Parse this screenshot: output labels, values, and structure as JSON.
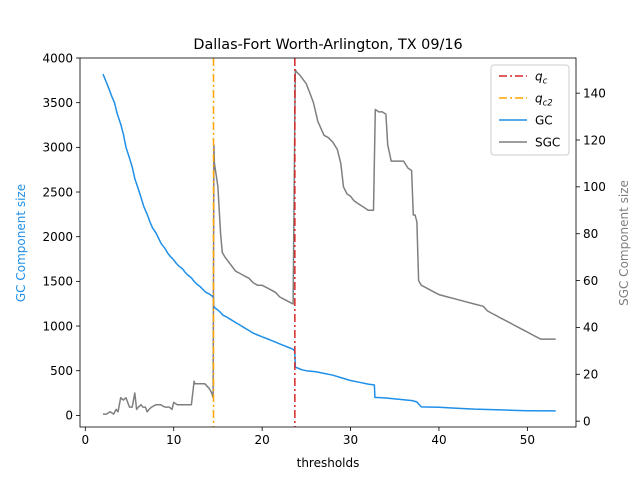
{
  "chart_data": {
    "type": "line",
    "title": "Dallas-Fort Worth-Arlington, TX 09/16",
    "xlabel": "thresholds",
    "ylabel_left": "GC Component size",
    "ylabel_right": "SGC Component size",
    "xlim": [
      -0.6,
      55.5
    ],
    "ylim_left": [
      -130,
      4000
    ],
    "ylim_right": [
      -2.5,
      155
    ],
    "x_ticks": [
      0,
      10,
      20,
      30,
      40,
      50
    ],
    "y_ticks_left": [
      0,
      500,
      1000,
      1500,
      2000,
      2500,
      3000,
      3500,
      4000
    ],
    "y_ticks_right": [
      0,
      20,
      40,
      60,
      80,
      100,
      120,
      140
    ],
    "grid": false,
    "legend_position": "top-right",
    "colors": {
      "qc": "#d62728",
      "qc2": "#ffa500",
      "gc": "#1f8fe8",
      "sgc": "#7f7f7f",
      "left_label": "#1f8fe8",
      "right_label": "#7f7f7f"
    },
    "vlines": [
      {
        "name": "qc",
        "x": 23.7
      },
      {
        "name": "qc2",
        "x": 14.5
      }
    ],
    "legend": [
      {
        "key": "qc",
        "base": "q",
        "sub": "c",
        "style": "dashdot"
      },
      {
        "key": "qc2",
        "base": "q",
        "sub": "c2",
        "style": "dashdot"
      },
      {
        "key": "gc",
        "label": "GC",
        "style": "solid"
      },
      {
        "key": "sgc",
        "label": "SGC",
        "style": "solid"
      }
    ],
    "series": [
      {
        "name": "GC",
        "axis": "left",
        "x": [
          2.0,
          2.5,
          3.0,
          3.3,
          3.6,
          4.0,
          4.3,
          4.6,
          5.0,
          5.3,
          5.6,
          6.0,
          6.3,
          6.6,
          7.0,
          7.3,
          7.6,
          8.0,
          8.3,
          8.6,
          9.0,
          9.3,
          9.6,
          10.0,
          10.3,
          10.6,
          11.0,
          11.3,
          11.6,
          12.0,
          12.3,
          12.6,
          13.0,
          13.3,
          13.6,
          14.0,
          14.3,
          14.5,
          14.55,
          14.7,
          15.0,
          15.3,
          15.6,
          16.0,
          16.5,
          17.0,
          17.5,
          18.0,
          18.5,
          19.0,
          19.5,
          20.0,
          20.5,
          21.0,
          21.5,
          22.0,
          22.5,
          23.0,
          23.5,
          23.7,
          23.75,
          24.0,
          24.5,
          25.0,
          25.5,
          26.0,
          27.0,
          28.0,
          29.0,
          30.0,
          31.0,
          32.0,
          32.7,
          32.75,
          33.0,
          34.0,
          35.0,
          36.0,
          37.0,
          37.5,
          38.0,
          40.0,
          42.0,
          44.0,
          46.0,
          48.0,
          50.0,
          53.2
        ],
        "values": [
          3820,
          3700,
          3570,
          3500,
          3380,
          3260,
          3150,
          3000,
          2880,
          2780,
          2650,
          2530,
          2440,
          2340,
          2250,
          2170,
          2100,
          2040,
          1980,
          1920,
          1870,
          1820,
          1780,
          1740,
          1700,
          1670,
          1640,
          1600,
          1570,
          1540,
          1500,
          1470,
          1440,
          1410,
          1380,
          1360,
          1340,
          1320,
          1220,
          1200,
          1180,
          1150,
          1120,
          1100,
          1070,
          1040,
          1010,
          980,
          950,
          920,
          900,
          880,
          860,
          840,
          820,
          800,
          780,
          760,
          740,
          720,
          540,
          530,
          510,
          500,
          495,
          490,
          470,
          450,
          420,
          390,
          370,
          350,
          340,
          200,
          200,
          195,
          185,
          175,
          165,
          150,
          95,
          90,
          80,
          70,
          65,
          58,
          52,
          50
        ]
      },
      {
        "name": "SGC",
        "axis": "right",
        "x": [
          2.0,
          2.4,
          2.8,
          3.2,
          3.5,
          3.7,
          4.0,
          4.3,
          4.6,
          4.8,
          5.0,
          5.3,
          5.6,
          5.8,
          6.0,
          6.3,
          6.5,
          6.8,
          7.0,
          7.2,
          7.5,
          8.0,
          8.5,
          9.0,
          9.5,
          9.8,
          10.0,
          10.4,
          10.8,
          11.2,
          12.0,
          12.3,
          12.4,
          12.6,
          13.0,
          13.5,
          14.0,
          14.3,
          14.45,
          14.55,
          14.6,
          14.8,
          15.0,
          15.3,
          15.5,
          15.8,
          16.2,
          16.6,
          17.0,
          17.5,
          18.0,
          18.5,
          19.0,
          19.5,
          20.0,
          20.5,
          21.0,
          21.5,
          22.0,
          22.5,
          23.0,
          23.5,
          23.75,
          23.9,
          24.2,
          24.6,
          25.0,
          25.4,
          25.8,
          26.3,
          27.0,
          27.5,
          28.0,
          28.5,
          28.9,
          29.2,
          29.6,
          30.0,
          30.4,
          30.8,
          31.2,
          31.6,
          32.0,
          32.6,
          32.8,
          33.2,
          33.6,
          34.0,
          34.2,
          34.6,
          35.0,
          35.5,
          36.0,
          36.5,
          36.9,
          37.1,
          37.3,
          37.5,
          37.7,
          38.0,
          38.5,
          39.0,
          39.5,
          40.0,
          41.0,
          42.0,
          43.0,
          44.0,
          45.0,
          45.5,
          46.0,
          46.5,
          47.0,
          47.5,
          48.0,
          48.5,
          49.0,
          49.5,
          50.0,
          50.5,
          51.0,
          51.5,
          52.0,
          53.2
        ],
        "values": [
          3,
          3,
          4,
          3,
          5,
          4,
          10,
          9,
          10,
          8,
          6,
          6,
          12,
          5,
          6,
          7,
          6,
          6,
          4,
          5,
          6,
          7,
          7,
          6,
          6,
          5,
          8,
          7,
          7,
          7,
          7,
          17,
          16,
          16,
          16,
          16,
          14,
          12,
          10,
          118,
          110,
          105,
          100,
          80,
          72,
          70,
          68,
          66,
          64,
          63,
          62,
          61,
          59,
          58,
          58,
          57,
          56,
          55,
          53,
          52,
          51,
          50,
          150,
          149,
          148,
          146,
          144,
          140,
          136,
          128,
          122,
          121,
          119,
          116,
          110,
          100,
          97,
          96,
          94,
          93,
          92,
          91,
          90,
          90,
          133,
          132,
          132,
          131,
          118,
          111,
          111,
          111,
          111,
          108,
          107,
          88,
          88,
          85,
          60,
          58,
          57,
          56,
          55,
          54,
          53,
          52,
          51,
          50,
          49,
          47,
          46,
          45,
          44,
          43,
          42,
          41,
          40,
          39,
          38,
          37,
          36,
          35,
          35,
          35
        ]
      }
    ]
  }
}
